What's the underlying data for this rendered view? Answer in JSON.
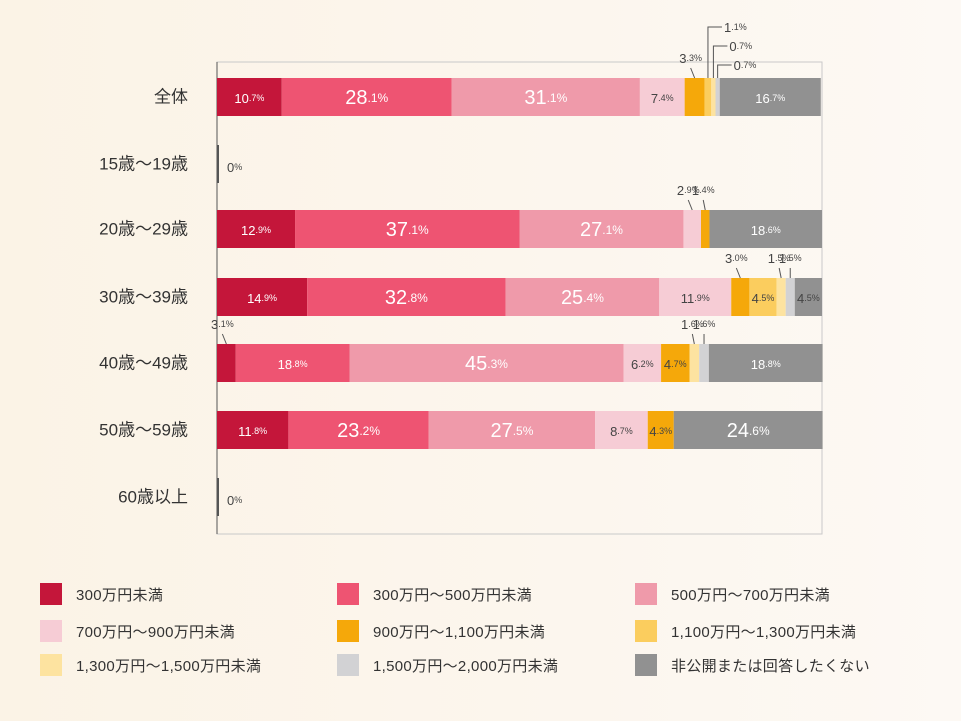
{
  "chart_data": {
    "type": "bar",
    "orientation": "horizontal",
    "stacked": true,
    "percent": true,
    "categories": [
      "全体",
      "15歳〜19歳",
      "20歳〜29歳",
      "30歳〜39歳",
      "40歳〜49歳",
      "50歳〜59歳",
      "60歳以上"
    ],
    "series": [
      {
        "name": "300万円未満",
        "color": "#c4163a",
        "values": [
          10.7,
          0,
          12.9,
          14.9,
          3.1,
          11.8,
          0
        ]
      },
      {
        "name": "300万円〜500万円未満",
        "color": "#ee5472",
        "values": [
          28.1,
          0,
          37.1,
          32.8,
          18.8,
          23.2,
          0
        ]
      },
      {
        "name": "500万円〜700万円未満",
        "color": "#ef9aaa",
        "values": [
          31.1,
          0,
          27.1,
          25.4,
          45.3,
          27.5,
          0
        ]
      },
      {
        "name": "700万円〜900万円未満",
        "color": "#f6ccd5",
        "values": [
          7.4,
          0,
          2.9,
          11.9,
          6.2,
          8.7,
          0
        ]
      },
      {
        "name": "900万円〜1,100万円未満",
        "color": "#f5a80a",
        "values": [
          3.3,
          0,
          1.4,
          3.0,
          4.7,
          4.3,
          0
        ]
      },
      {
        "name": "1,100万円〜1,300万円未満",
        "color": "#fbcd5e",
        "values": [
          1.1,
          0,
          0,
          4.5,
          0,
          0,
          0
        ]
      },
      {
        "name": "1,300万円〜1,500万円未満",
        "color": "#fde3a0",
        "values": [
          0.7,
          0,
          0,
          1.5,
          1.6,
          0,
          0
        ]
      },
      {
        "name": "1,500万円〜2,000万円未満",
        "color": "#d2d2d4",
        "values": [
          0.7,
          0,
          0,
          1.5,
          1.6,
          0,
          0
        ]
      },
      {
        "name": "非公開または回答したくない",
        "color": "#919191",
        "values": [
          16.7,
          0,
          18.6,
          4.5,
          18.8,
          24.6,
          0
        ]
      }
    ],
    "labels": [
      [
        "10.7%",
        "28.1%",
        "31.1%",
        "7.4%",
        "3.3%",
        "1.1%",
        "0.7%",
        "0.7%",
        "16.7%"
      ],
      [
        "0%"
      ],
      [
        "12.9%",
        "37.1%",
        "27.1%",
        "2.9%",
        "1.4%",
        "18.6%"
      ],
      [
        "14.9%",
        "32.8%",
        "25.4%",
        "11.9%",
        "3.0%",
        "4.5%",
        "1.5%",
        "1.5%",
        "4.5%"
      ],
      [
        "3.1%",
        "18.8%",
        "45.3%",
        "6.2%",
        "4.7%",
        "1.6%",
        "1.6%",
        "18.8%"
      ],
      [
        "11.8%",
        "23.2%",
        "27.5%",
        "8.7%",
        "4.3%",
        "24.6%"
      ],
      [
        "0%"
      ]
    ],
    "xlim": [
      0,
      100
    ],
    "legend_position": "bottom"
  },
  "legend": [
    {
      "label": "300万円未満",
      "color": "#c4163a"
    },
    {
      "label": "300万円〜500万円未満",
      "color": "#ee5472"
    },
    {
      "label": "500万円〜700万円未満",
      "color": "#ef9aaa"
    },
    {
      "label": "700万円〜900万円未満",
      "color": "#f6ccd5"
    },
    {
      "label": "900万円〜1,100万円未満",
      "color": "#f5a80a"
    },
    {
      "label": "1,100万円〜1,300万円未満",
      "color": "#fbcd5e"
    },
    {
      "label": "1,300万円〜1,500万円未満",
      "color": "#fde3a0"
    },
    {
      "label": "1,500万円〜2,000万円未満",
      "color": "#d2d2d4"
    },
    {
      "label": "非公開または回答したくない",
      "color": "#919191"
    }
  ]
}
